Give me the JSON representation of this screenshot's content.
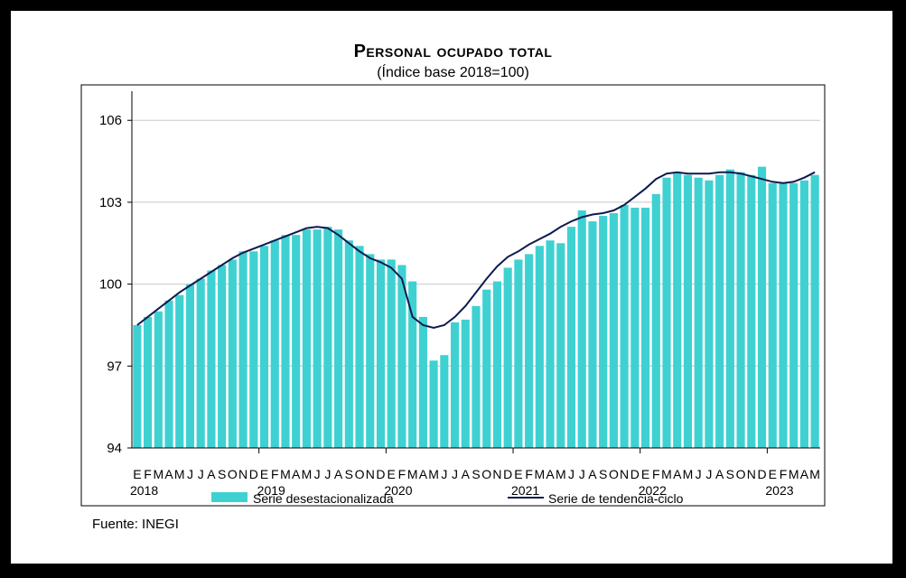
{
  "title": "Personal ocupado total",
  "subtitle": "(Índice base 2018=100)",
  "source": "Fuente: INEGI",
  "chart_data": {
    "type": "bar",
    "ylim": [
      94,
      107
    ],
    "yticks": [
      94,
      97,
      100,
      103,
      106
    ],
    "grid": true,
    "legend_position": "bottom",
    "colors": {
      "bars": "#3fd1d1",
      "line": "#0d1b4f",
      "grid": "#c8c8c8"
    },
    "month_labels": [
      "E",
      "F",
      "M",
      "A",
      "M",
      "J",
      "J",
      "A",
      "S",
      "O",
      "N",
      "D",
      "E",
      "F",
      "M",
      "A",
      "M",
      "J",
      "J",
      "A",
      "S",
      "O",
      "N",
      "D",
      "E",
      "F",
      "M",
      "A",
      "M",
      "J",
      "J",
      "A",
      "S",
      "O",
      "N",
      "D",
      "E",
      "F",
      "M",
      "A",
      "M",
      "J",
      "J",
      "A",
      "S",
      "O",
      "N",
      "D",
      "E",
      "F",
      "M",
      "A",
      "M",
      "J",
      "J",
      "A",
      "S",
      "O",
      "N",
      "D",
      "E",
      "F",
      "M",
      "A",
      "M"
    ],
    "year_labels": [
      {
        "label": "2018",
        "index": 0
      },
      {
        "label": "2019",
        "index": 12
      },
      {
        "label": "2020",
        "index": 24
      },
      {
        "label": "2021",
        "index": 36
      },
      {
        "label": "2022",
        "index": 48
      },
      {
        "label": "2023",
        "index": 60
      }
    ],
    "series": [
      {
        "name": "Serie desestacionalizada",
        "kind": "bar",
        "values": [
          98.5,
          98.8,
          99.0,
          99.4,
          99.6,
          100.0,
          100.2,
          100.5,
          100.7,
          100.9,
          101.2,
          101.2,
          101.4,
          101.6,
          101.8,
          101.8,
          102.0,
          102.0,
          102.1,
          102.0,
          101.6,
          101.4,
          101.1,
          100.9,
          100.9,
          100.7,
          100.1,
          98.8,
          97.2,
          97.4,
          98.6,
          98.7,
          99.2,
          99.8,
          100.1,
          100.6,
          100.9,
          101.1,
          101.4,
          101.6,
          101.5,
          102.1,
          102.7,
          102.3,
          102.5,
          102.6,
          102.9,
          102.8,
          102.8,
          103.3,
          103.9,
          104.1,
          104.0,
          103.9,
          103.8,
          104.0,
          104.2,
          104.1,
          104.0,
          104.3,
          103.7,
          103.7,
          103.7,
          103.8,
          104.0
        ]
      },
      {
        "name": "Serie de tendencia-ciclo",
        "kind": "line",
        "values": [
          98.5,
          98.8,
          99.1,
          99.4,
          99.7,
          99.95,
          100.2,
          100.45,
          100.7,
          100.95,
          101.15,
          101.3,
          101.45,
          101.6,
          101.75,
          101.9,
          102.05,
          102.1,
          102.05,
          101.8,
          101.5,
          101.2,
          100.95,
          100.8,
          100.6,
          100.2,
          98.8,
          98.5,
          98.4,
          98.5,
          98.8,
          99.2,
          99.7,
          100.2,
          100.65,
          101.0,
          101.2,
          101.45,
          101.65,
          101.85,
          102.1,
          102.3,
          102.45,
          102.55,
          102.6,
          102.7,
          102.9,
          103.2,
          103.5,
          103.85,
          104.05,
          104.1,
          104.05,
          104.05,
          104.05,
          104.1,
          104.1,
          104.05,
          103.95,
          103.85,
          103.75,
          103.7,
          103.75,
          103.9,
          104.1
        ]
      }
    ]
  }
}
